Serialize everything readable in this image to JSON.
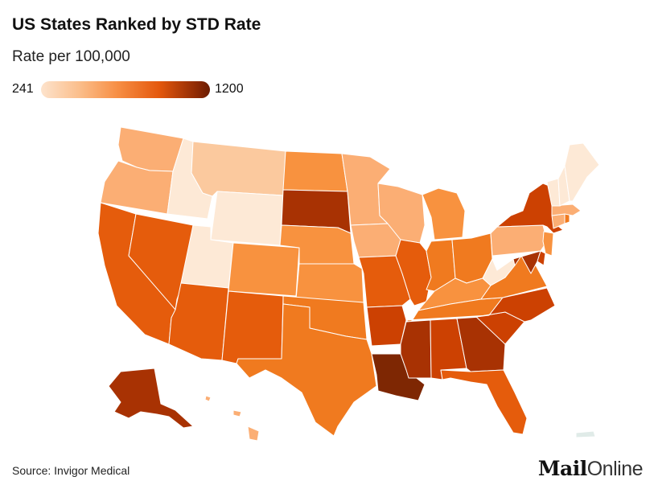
{
  "title": "US States Ranked by STD Rate",
  "subtitle": "Rate per 100,000",
  "legend": {
    "min_label": "241",
    "max_label": "1200",
    "min": 241,
    "max": 1200
  },
  "source": "Source: Invigor Medical",
  "logo": {
    "part1": "Mail",
    "part2": "Online"
  },
  "colors": {
    "c1": "#fde9d6",
    "c2": "#fbc99e",
    "c3": "#fbae74",
    "c4": "#f8923f",
    "c5": "#f07a1f",
    "c6": "#e55c0c",
    "c7": "#cc4102",
    "c8": "#a83203",
    "c9": "#7e2703"
  }
}
